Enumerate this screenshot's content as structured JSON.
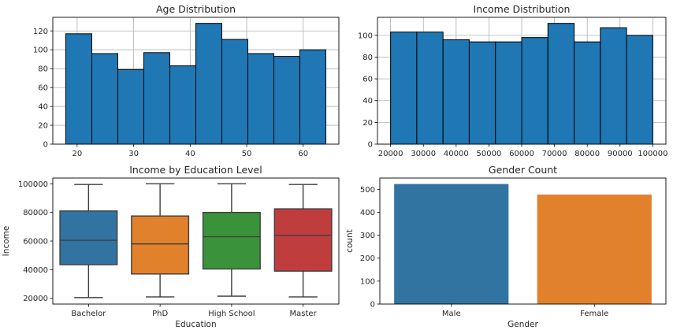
{
  "chart_data": [
    {
      "type": "bar",
      "subtype": "histogram",
      "title": "Age Distribution",
      "xlabel": "",
      "ylabel": "",
      "bin_edges": [
        18,
        22.6,
        27.2,
        31.8,
        36.4,
        41.0,
        45.6,
        50.2,
        54.8,
        59.4,
        64
      ],
      "values": [
        117,
        96,
        79,
        97,
        83,
        128,
        111,
        96,
        93,
        100
      ],
      "xlim": [
        15.7,
        66.3
      ],
      "ylim": [
        0,
        134.4
      ],
      "xticks": [
        20,
        30,
        40,
        50,
        60
      ],
      "yticks": [
        0,
        20,
        40,
        60,
        80,
        100,
        120
      ],
      "grid": true,
      "color": "#1f77b4"
    },
    {
      "type": "bar",
      "subtype": "histogram",
      "title": "Income Distribution",
      "xlabel": "",
      "ylabel": "",
      "bin_edges": [
        20000,
        28000,
        36000,
        44000,
        52000,
        60000,
        68000,
        76000,
        84000,
        92000,
        100000
      ],
      "values": [
        103,
        103,
        96,
        94,
        94,
        98,
        111,
        94,
        107,
        100
      ],
      "xlim": [
        16000,
        104000
      ],
      "ylim": [
        0,
        116.55
      ],
      "xticks": [
        20000,
        30000,
        40000,
        50000,
        60000,
        70000,
        80000,
        90000,
        100000
      ],
      "yticks": [
        0,
        20,
        40,
        60,
        80,
        100
      ],
      "grid": true,
      "color": "#1f77b4"
    },
    {
      "type": "box",
      "title": "Income by Education Level",
      "xlabel": "Education",
      "ylabel": "Income",
      "categories": [
        "Bachelor",
        "PhD",
        "High School",
        "Master"
      ],
      "boxes": [
        {
          "whisker_low": 20500,
          "q1": 43500,
          "median": 60500,
          "q3": 81000,
          "whisker_high": 99500,
          "color": "#3274a1"
        },
        {
          "whisker_low": 21000,
          "q1": 37000,
          "median": 58000,
          "q3": 77500,
          "whisker_high": 100000,
          "color": "#e1812c"
        },
        {
          "whisker_low": 21500,
          "q1": 40500,
          "median": 63000,
          "q3": 80000,
          "whisker_high": 100000,
          "color": "#3a923a"
        },
        {
          "whisker_low": 21000,
          "q1": 39000,
          "median": 64000,
          "q3": 82500,
          "whisker_high": 99500,
          "color": "#c03d3e"
        }
      ],
      "ylim": [
        16000,
        104000
      ],
      "yticks": [
        20000,
        40000,
        60000,
        80000,
        100000
      ],
      "grid": false
    },
    {
      "type": "bar",
      "title": "Gender Count",
      "xlabel": "Gender",
      "ylabel": "count",
      "categories": [
        "Male",
        "Female"
      ],
      "values": [
        523,
        477
      ],
      "colors": [
        "#3274a1",
        "#e1812c"
      ],
      "ylim": [
        0,
        549
      ],
      "yticks": [
        0,
        100,
        200,
        300,
        400,
        500
      ],
      "grid": false
    }
  ]
}
